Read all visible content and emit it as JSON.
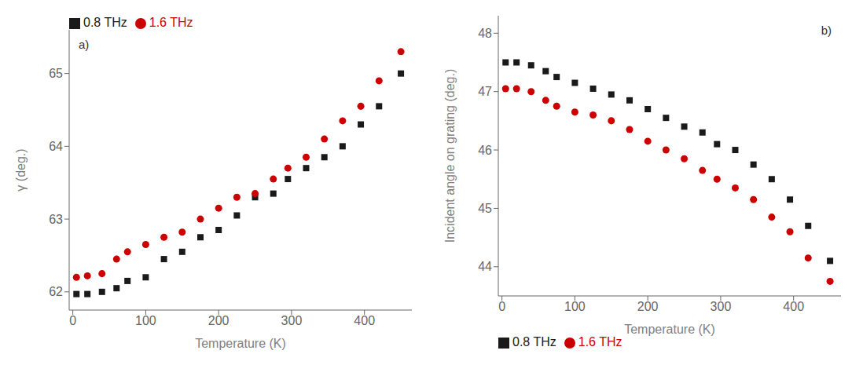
{
  "chart_data": [
    {
      "type": "scatter",
      "xlabel": "Temperature (K)",
      "ylabel": "γ (deg.)",
      "annotations": [
        "a)"
      ],
      "x": [
        5,
        20,
        40,
        60,
        75,
        100,
        125,
        150,
        175,
        200,
        225,
        250,
        275,
        295,
        320,
        345,
        370,
        395,
        420,
        450
      ],
      "series": [
        {
          "name": "0.8 THz",
          "color": "#1a1a1a",
          "marker": "square",
          "values": [
            61.97,
            61.97,
            62.0,
            62.05,
            62.15,
            62.2,
            62.45,
            62.55,
            62.75,
            62.85,
            63.05,
            63.3,
            63.35,
            63.55,
            63.7,
            63.85,
            64.0,
            64.3,
            64.55,
            65.0
          ]
        },
        {
          "name": "1.6 THz",
          "color": "#cc0000",
          "marker": "circle",
          "values": [
            62.2,
            62.22,
            62.25,
            62.45,
            62.55,
            62.65,
            62.75,
            62.82,
            63.0,
            63.15,
            63.3,
            63.35,
            63.55,
            63.7,
            63.85,
            64.1,
            64.35,
            64.55,
            64.9,
            65.3
          ]
        }
      ],
      "xlim": [
        -5,
        465
      ],
      "xticks": [
        0,
        100,
        200,
        300,
        400
      ],
      "ylim": [
        61.75,
        65.6
      ],
      "yticks": [
        62,
        63,
        64,
        65
      ],
      "grid": false,
      "legend": "upper left"
    },
    {
      "type": "scatter",
      "xlabel": "Temperature (K)",
      "ylabel": "Incident angle on grating (deg.)",
      "annotations": [
        "b)"
      ],
      "x": [
        5,
        20,
        40,
        60,
        75,
        100,
        125,
        150,
        175,
        200,
        225,
        250,
        275,
        295,
        320,
        345,
        370,
        395,
        420,
        450
      ],
      "series": [
        {
          "name": "0.8 THz",
          "color": "#1a1a1a",
          "marker": "square",
          "values": [
            47.5,
            47.5,
            47.45,
            47.35,
            47.25,
            47.15,
            47.05,
            46.95,
            46.85,
            46.7,
            46.55,
            46.4,
            46.3,
            46.1,
            46.0,
            45.75,
            45.5,
            45.15,
            44.7,
            44.1
          ]
        },
        {
          "name": "1.6 THz",
          "color": "#cc0000",
          "marker": "circle",
          "values": [
            47.05,
            47.05,
            47.0,
            46.85,
            46.75,
            46.65,
            46.6,
            46.5,
            46.35,
            46.15,
            46.0,
            45.85,
            45.65,
            45.5,
            45.35,
            45.15,
            44.85,
            44.6,
            44.15,
            43.75
          ]
        }
      ],
      "xlim": [
        -5,
        465
      ],
      "xticks": [
        0,
        100,
        200,
        300,
        400
      ],
      "ylim": [
        43.5,
        48.3
      ],
      "yticks": [
        44,
        45,
        46,
        47,
        48
      ],
      "grid": false,
      "legend": "lower left"
    }
  ]
}
